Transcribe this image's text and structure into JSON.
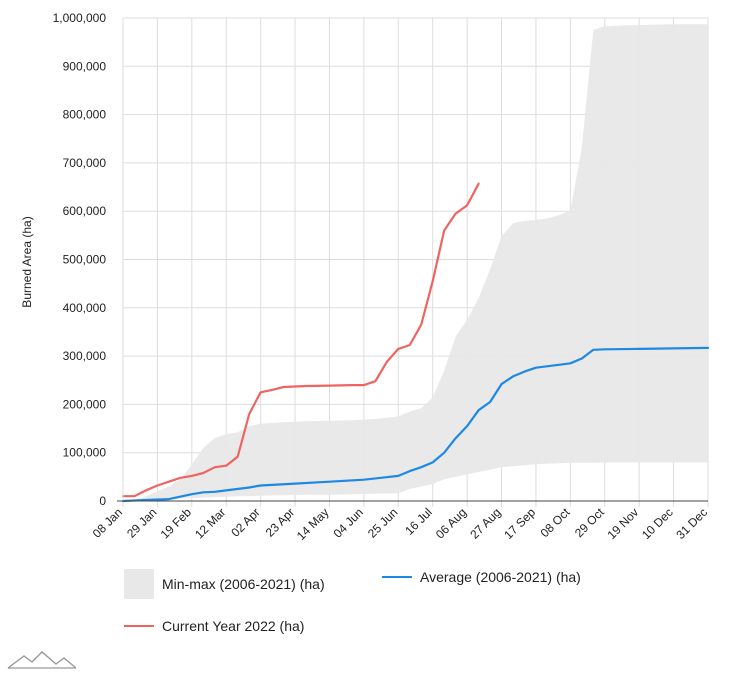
{
  "chart_data": {
    "type": "area",
    "ylabel": "Burned Area (ha)",
    "xlabel": "",
    "ylim": [
      0,
      1000000
    ],
    "y_ticks": [
      "0",
      "100,000",
      "200,000",
      "300,000",
      "400,000",
      "500,000",
      "600,000",
      "700,000",
      "800,000",
      "900,000",
      "1,000,000"
    ],
    "x_ticks": [
      "08 Jan",
      "29 Jan",
      "19 Feb",
      "12 Mar",
      "02 Apr",
      "23 Apr",
      "14 May",
      "04 Jun",
      "25 Jun",
      "16 Jul",
      "06 Aug",
      "27 Aug",
      "17 Sep",
      "08 Oct",
      "29 Oct",
      "19 Nov",
      "10 Dec",
      "31 Dec"
    ],
    "grid": true,
    "legend_position": "bottom",
    "series": [
      {
        "name": "Min-max (2006-2021) (ha)",
        "type": "range",
        "color": "#e8e8e8",
        "points": [
          [
            "08 Jan",
            0,
            0
          ],
          [
            "15 Jan",
            0,
            2000
          ],
          [
            "22 Jan",
            1000,
            10000
          ],
          [
            "29 Jan",
            2000,
            20000
          ],
          [
            "05 Feb",
            3000,
            30000
          ],
          [
            "12 Feb",
            5000,
            45000
          ],
          [
            "19 Feb",
            6000,
            75000
          ],
          [
            "26 Feb",
            7000,
            110000
          ],
          [
            "05 Mar",
            8000,
            130000
          ],
          [
            "12 Mar",
            9000,
            138000
          ],
          [
            "19 Mar",
            10000,
            142000
          ],
          [
            "26 Mar",
            10000,
            155000
          ],
          [
            "02 Apr",
            11000,
            160000
          ],
          [
            "16 Apr",
            12000,
            163000
          ],
          [
            "30 Apr",
            13000,
            165000
          ],
          [
            "14 May",
            13000,
            166000
          ],
          [
            "28 May",
            14000,
            167000
          ],
          [
            "11 Jun",
            15000,
            170000
          ],
          [
            "25 Jun",
            16000,
            175000
          ],
          [
            "02 Jul",
            25000,
            185000
          ],
          [
            "09 Jul",
            30000,
            192000
          ],
          [
            "16 Jul",
            35000,
            215000
          ],
          [
            "23 Jul",
            45000,
            270000
          ],
          [
            "30 Jul",
            50000,
            340000
          ],
          [
            "06 Aug",
            55000,
            375000
          ],
          [
            "13 Aug",
            60000,
            420000
          ],
          [
            "20 Aug",
            65000,
            480000
          ],
          [
            "27 Aug",
            70000,
            548000
          ],
          [
            "03 Sep",
            72000,
            575000
          ],
          [
            "10 Sep",
            74000,
            580000
          ],
          [
            "17 Sep",
            76000,
            582000
          ],
          [
            "24 Sep",
            77000,
            585000
          ],
          [
            "01 Oct",
            78000,
            592000
          ],
          [
            "08 Oct",
            79000,
            602000
          ],
          [
            "15 Oct",
            79000,
            730000
          ],
          [
            "22 Oct",
            79000,
            975000
          ],
          [
            "29 Oct",
            80000,
            983000
          ],
          [
            "12 Nov",
            80000,
            985000
          ],
          [
            "26 Nov",
            80000,
            986000
          ],
          [
            "10 Dec",
            80000,
            987000
          ],
          [
            "31 Dec",
            80000,
            987000
          ]
        ]
      },
      {
        "name": "Average (2006-2021) (ha)",
        "color": "#1e88e5",
        "points": [
          [
            "08 Jan",
            0
          ],
          [
            "22 Jan",
            2000
          ],
          [
            "05 Feb",
            4000
          ],
          [
            "19 Feb",
            14000
          ],
          [
            "26 Feb",
            18000
          ],
          [
            "05 Mar",
            19000
          ],
          [
            "12 Mar",
            22000
          ],
          [
            "26 Mar",
            28000
          ],
          [
            "02 Apr",
            32000
          ],
          [
            "23 Apr",
            36000
          ],
          [
            "14 May",
            40000
          ],
          [
            "04 Jun",
            44000
          ],
          [
            "25 Jun",
            52000
          ],
          [
            "02 Jul",
            62000
          ],
          [
            "09 Jul",
            70000
          ],
          [
            "16 Jul",
            80000
          ],
          [
            "23 Jul",
            100000
          ],
          [
            "30 Jul",
            130000
          ],
          [
            "06 Aug",
            155000
          ],
          [
            "13 Aug",
            188000
          ],
          [
            "20 Aug",
            205000
          ],
          [
            "27 Aug",
            242000
          ],
          [
            "03 Sep",
            258000
          ],
          [
            "10 Sep",
            268000
          ],
          [
            "17 Sep",
            276000
          ],
          [
            "01 Oct",
            282000
          ],
          [
            "08 Oct",
            285000
          ],
          [
            "15 Oct",
            295000
          ],
          [
            "22 Oct",
            313000
          ],
          [
            "29 Oct",
            314000
          ],
          [
            "19 Nov",
            315000
          ],
          [
            "31 Dec",
            317000
          ]
        ]
      },
      {
        "name": "Current Year 2022 (ha)",
        "color": "#ef6461",
        "points": [
          [
            "08 Jan",
            10000
          ],
          [
            "15 Jan",
            10000
          ],
          [
            "22 Jan",
            22000
          ],
          [
            "29 Jan",
            32000
          ],
          [
            "05 Feb",
            40000
          ],
          [
            "12 Feb",
            48000
          ],
          [
            "19 Feb",
            52000
          ],
          [
            "26 Feb",
            58000
          ],
          [
            "05 Mar",
            70000
          ],
          [
            "12 Mar",
            73000
          ],
          [
            "19 Mar",
            92000
          ],
          [
            "26 Mar",
            180000
          ],
          [
            "02 Apr",
            225000
          ],
          [
            "09 Apr",
            230000
          ],
          [
            "16 Apr",
            236000
          ],
          [
            "30 Apr",
            238000
          ],
          [
            "14 May",
            239000
          ],
          [
            "28 May",
            240000
          ],
          [
            "04 Jun",
            240000
          ],
          [
            "11 Jun",
            248000
          ],
          [
            "18 Jun",
            288000
          ],
          [
            "25 Jun",
            315000
          ],
          [
            "02 Jul",
            323000
          ],
          [
            "09 Jul",
            365000
          ],
          [
            "16 Jul",
            455000
          ],
          [
            "23 Jul",
            560000
          ],
          [
            "30 Jul",
            595000
          ],
          [
            "06 Aug",
            612000
          ],
          [
            "13 Aug",
            657000
          ]
        ]
      }
    ]
  },
  "legend": {
    "minmax": "Min-max (2006-2021) (ha)",
    "average": "Average (2006-2021) (ha)",
    "current": "Current Year 2022 (ha)"
  },
  "colors": {
    "grid": "#dddddd",
    "axis": "#444444",
    "range": "#e8e8e8",
    "average": "#1e88e5",
    "current": "#ef6461"
  },
  "logo_icon": "mountain-logo-icon"
}
